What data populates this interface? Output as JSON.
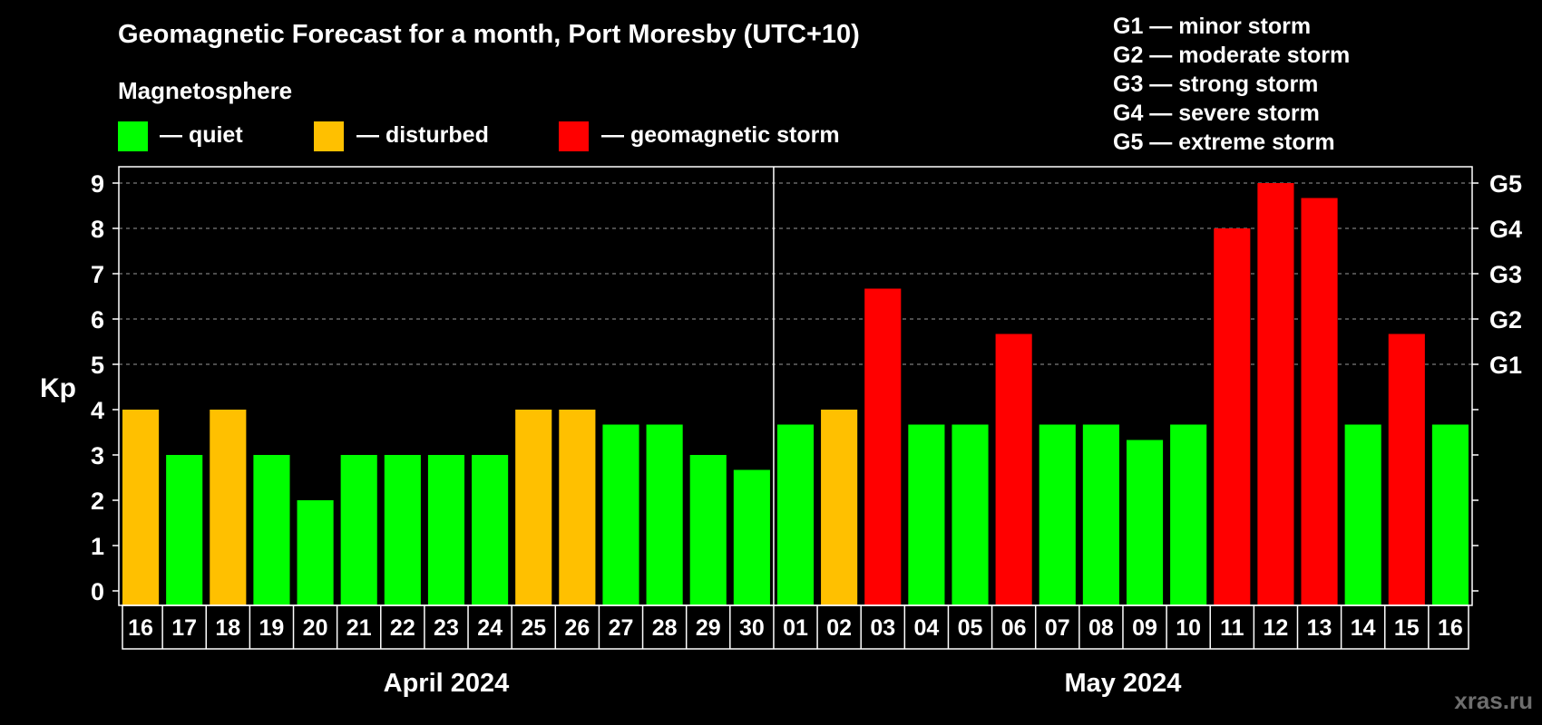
{
  "chart_data": {
    "type": "bar",
    "title": "Geomagnetic Forecast for a month, Port Moresby (UTC+10)",
    "legend": {
      "heading": "Magnetosphere",
      "items": [
        {
          "label": "— quiet",
          "color": "#00ff00"
        },
        {
          "label": "— disturbed",
          "color": "#ffc000"
        },
        {
          "label": "— geomagnetic storm",
          "color": "#ff0000"
        }
      ]
    },
    "storm_scale": [
      {
        "level": "G1",
        "label": "G1 — minor storm",
        "kp": 5
      },
      {
        "level": "G2",
        "label": "G2 — moderate storm",
        "kp": 6
      },
      {
        "level": "G3",
        "label": "G3 — strong storm",
        "kp": 7
      },
      {
        "level": "G4",
        "label": "G4 — severe storm",
        "kp": 8
      },
      {
        "level": "G5",
        "label": "G5 — extreme storm",
        "kp": 9
      }
    ],
    "ylabel": "Kp",
    "ylim": [
      0,
      9
    ],
    "yticks": [
      0,
      1,
      2,
      3,
      4,
      5,
      6,
      7,
      8,
      9
    ],
    "grid": "dashed horizontal at Kp 5-9",
    "categories": [
      "16",
      "17",
      "18",
      "19",
      "20",
      "21",
      "22",
      "23",
      "24",
      "25",
      "26",
      "27",
      "28",
      "29",
      "30",
      "01",
      "02",
      "03",
      "04",
      "05",
      "06",
      "07",
      "08",
      "09",
      "10",
      "11",
      "12",
      "13",
      "14",
      "15",
      "16"
    ],
    "values": [
      4,
      3,
      4,
      3,
      2,
      3,
      3,
      3,
      3,
      4,
      4,
      3.67,
      3.67,
      3,
      2.67,
      3.67,
      4,
      6.67,
      3.67,
      3.67,
      5.67,
      3.67,
      3.67,
      3.33,
      3.67,
      8,
      9,
      8.67,
      3.67,
      5.67,
      3.67
    ],
    "status": [
      "disturbed",
      "quiet",
      "disturbed",
      "quiet",
      "quiet",
      "quiet",
      "quiet",
      "quiet",
      "quiet",
      "disturbed",
      "disturbed",
      "quiet",
      "quiet",
      "quiet",
      "quiet",
      "quiet",
      "disturbed",
      "storm",
      "quiet",
      "quiet",
      "storm",
      "quiet",
      "quiet",
      "quiet",
      "quiet",
      "storm",
      "storm",
      "storm",
      "quiet",
      "storm",
      "quiet"
    ],
    "colors": {
      "quiet": "#00ff00",
      "disturbed": "#ffc000",
      "storm": "#ff0000",
      "background": "#000000",
      "text": "#ffffff",
      "grid": "#9a9a9a",
      "watermark": "#6e6e6e"
    },
    "months": [
      {
        "label": "April 2024",
        "start": 0,
        "end": 14
      },
      {
        "label": "May 2024",
        "start": 15,
        "end": 30
      }
    ],
    "watermark": "xras.ru"
  }
}
